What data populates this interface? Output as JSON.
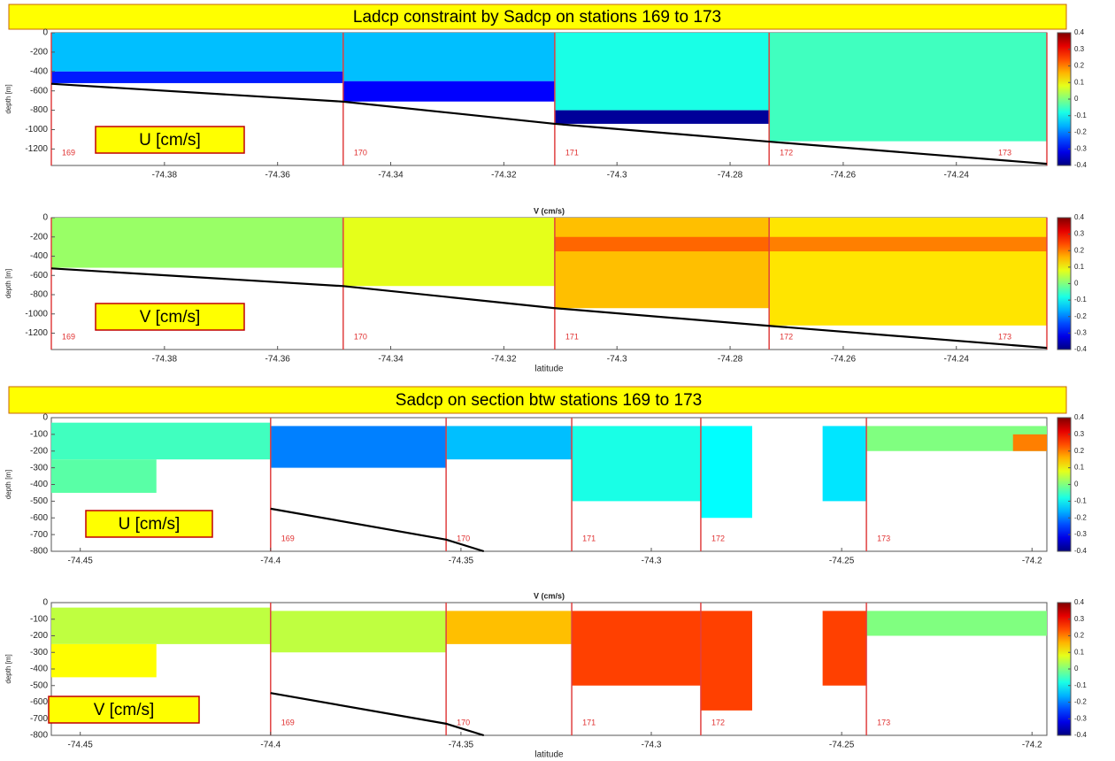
{
  "banners": [
    "Ladcp  constraint  by  Sadcp  on stations  169 to 173",
    "Sadcp  on section btw  stations  169 to 173"
  ],
  "chart_data": [
    {
      "type": "heatmap",
      "label": "U [cm/s]",
      "ylabel": "depth [m]",
      "xlim": [
        -74.4,
        -74.224
      ],
      "ylim": [
        -1370,
        0
      ],
      "xticks": [
        -74.38,
        -74.36,
        -74.34,
        -74.32,
        -74.3,
        -74.28,
        -74.26,
        -74.24
      ],
      "yticks": [
        0,
        -200,
        -400,
        -600,
        -800,
        -1000,
        -1200
      ],
      "clim": [
        -0.4,
        0.4
      ],
      "cticks": [
        0.4,
        0.3,
        0.2,
        0.1,
        0,
        -0.1,
        -0.2,
        -0.3,
        -0.4
      ],
      "stations": {
        "names": [
          "169",
          "170",
          "171",
          "172",
          "173"
        ],
        "x": [
          -74.4,
          -74.3484,
          -74.311,
          -74.2731,
          -74.224
        ]
      },
      "bottom": {
        "x": [
          -74.4,
          -74.3484,
          -74.311,
          -74.2731,
          -74.224
        ],
        "y": [
          -527,
          -711,
          -940,
          -1124,
          -1353
        ]
      },
      "cells": [
        {
          "x": [
            -74.4,
            -74.3484
          ],
          "y": [
            0,
            -400
          ],
          "value": -0.15
        },
        {
          "x": [
            -74.4,
            -74.3484
          ],
          "y": [
            -400,
            -520
          ],
          "value": -0.28
        },
        {
          "x": [
            -74.3484,
            -74.311
          ],
          "y": [
            0,
            -500
          ],
          "value": -0.15
        },
        {
          "x": [
            -74.3484,
            -74.311
          ],
          "y": [
            -500,
            -710
          ],
          "value": -0.3
        },
        {
          "x": [
            -74.311,
            -74.2731
          ],
          "y": [
            0,
            -800
          ],
          "value": -0.08
        },
        {
          "x": [
            -74.311,
            -74.2731
          ],
          "y": [
            -800,
            -940
          ],
          "value": -0.38
        },
        {
          "x": [
            -74.2731,
            -74.224
          ],
          "y": [
            0,
            -1120
          ],
          "value": -0.05
        }
      ]
    },
    {
      "type": "heatmap",
      "title": "V (cm/s)",
      "label": "V [cm/s]",
      "ylabel": "depth [m]",
      "xlabel": "latitude",
      "xlim": [
        -74.4,
        -74.224
      ],
      "ylim": [
        -1370,
        0
      ],
      "xticks": [
        -74.38,
        -74.36,
        -74.34,
        -74.32,
        -74.3,
        -74.28,
        -74.26,
        -74.24
      ],
      "yticks": [
        0,
        -200,
        -400,
        -600,
        -800,
        -1000,
        -1200
      ],
      "clim": [
        -0.4,
        0.4
      ],
      "cticks": [
        0.4,
        0.3,
        0.2,
        0.1,
        0,
        -0.1,
        -0.2,
        -0.3,
        -0.4
      ],
      "stations": {
        "names": [
          "169",
          "170",
          "171",
          "172",
          "173"
        ],
        "x": [
          -74.4,
          -74.3484,
          -74.311,
          -74.2731,
          -74.224
        ]
      },
      "bottom": {
        "x": [
          -74.4,
          -74.3484,
          -74.311,
          -74.2731,
          -74.224
        ],
        "y": [
          -527,
          -711,
          -940,
          -1124,
          -1353
        ]
      },
      "cells": [
        {
          "x": [
            -74.4,
            -74.3484
          ],
          "y": [
            0,
            -520
          ],
          "value": 0.02
        },
        {
          "x": [
            -74.3484,
            -74.311
          ],
          "y": [
            0,
            -710
          ],
          "value": 0.08
        },
        {
          "x": [
            -74.311,
            -74.2731
          ],
          "y": [
            0,
            -940
          ],
          "value": 0.15
        },
        {
          "x": [
            -74.311,
            -74.2731
          ],
          "y": [
            -200,
            -350
          ],
          "value": 0.22
        },
        {
          "x": [
            -74.2731,
            -74.224
          ],
          "y": [
            0,
            -1120
          ],
          "value": 0.12
        },
        {
          "x": [
            -74.2731,
            -74.224
          ],
          "y": [
            -200,
            -350
          ],
          "value": 0.2
        }
      ]
    },
    {
      "type": "heatmap",
      "label": "U [cm/s]",
      "ylabel": "depth [m]",
      "xlim": [
        -74.4576,
        -74.1961
      ],
      "ylim": [
        -800,
        0
      ],
      "xticks": [
        -74.45,
        -74.4,
        -74.35,
        -74.3,
        -74.25,
        -74.2
      ],
      "yticks": [
        0,
        -100,
        -200,
        -300,
        -400,
        -500,
        -600,
        -700,
        -800
      ],
      "clim": [
        -0.4,
        0.4
      ],
      "cticks": [
        0.4,
        0.3,
        0.2,
        0.1,
        0,
        -0.1,
        -0.2,
        -0.3,
        -0.4
      ],
      "stations": {
        "names": [
          "169",
          "170",
          "171",
          "172",
          "173"
        ],
        "x": [
          -74.4,
          -74.3539,
          -74.3209,
          -74.287,
          -74.2435
        ]
      },
      "bottom": {
        "x": [
          -74.4,
          -74.3539,
          -74.344
        ],
        "y": [
          -545,
          -730,
          -800
        ]
      },
      "cells": [
        {
          "x": [
            -74.4576,
            -74.4
          ],
          "y": [
            -30,
            -250
          ],
          "value": -0.05
        },
        {
          "x": [
            -74.4576,
            -74.43
          ],
          "y": [
            -250,
            -450
          ],
          "value": -0.03
        },
        {
          "x": [
            -74.4,
            -74.3539
          ],
          "y": [
            -50,
            -300
          ],
          "value": -0.2
        },
        {
          "x": [
            -74.3539,
            -74.3209
          ],
          "y": [
            -50,
            -250
          ],
          "value": -0.15
        },
        {
          "x": [
            -74.3209,
            -74.287
          ],
          "y": [
            -50,
            -500
          ],
          "value": -0.08
        },
        {
          "x": [
            -74.287,
            -74.2735
          ],
          "y": [
            -50,
            -600
          ],
          "value": -0.1
        },
        {
          "x": [
            -74.255,
            -74.2435
          ],
          "y": [
            -50,
            -500
          ],
          "value": -0.12
        },
        {
          "x": [
            -74.2435,
            -74.1961
          ],
          "y": [
            -50,
            -200
          ],
          "value": 0
        },
        {
          "x": [
            -74.205,
            -74.1961
          ],
          "y": [
            -100,
            -200
          ],
          "value": 0.2
        }
      ]
    },
    {
      "type": "heatmap",
      "title": "V (cm/s)",
      "label": "V [cm/s]",
      "ylabel": "depth [m]",
      "xlabel": "latitude",
      "xlim": [
        -74.4576,
        -74.1961
      ],
      "ylim": [
        -800,
        0
      ],
      "xticks": [
        -74.45,
        -74.4,
        -74.35,
        -74.3,
        -74.25,
        -74.2
      ],
      "yticks": [
        0,
        -100,
        -200,
        -300,
        -400,
        -500,
        -600,
        -700,
        -800
      ],
      "clim": [
        -0.4,
        0.4
      ],
      "cticks": [
        0.4,
        0.3,
        0.2,
        0.1,
        0,
        -0.1,
        -0.2,
        -0.3,
        -0.4
      ],
      "stations": {
        "names": [
          "169",
          "170",
          "171",
          "172",
          "173"
        ],
        "x": [
          -74.4,
          -74.3539,
          -74.3209,
          -74.287,
          -74.2435
        ]
      },
      "bottom": {
        "x": [
          -74.4,
          -74.3539,
          -74.344
        ],
        "y": [
          -545,
          -730,
          -800
        ]
      },
      "cells": [
        {
          "x": [
            -74.4576,
            -74.4
          ],
          "y": [
            -30,
            -250
          ],
          "value": 0.05
        },
        {
          "x": [
            -74.4576,
            -74.43
          ],
          "y": [
            -250,
            -450
          ],
          "value": 0.1
        },
        {
          "x": [
            -74.4,
            -74.3539
          ],
          "y": [
            -50,
            -300
          ],
          "value": 0.05
        },
        {
          "x": [
            -74.3539,
            -74.3209
          ],
          "y": [
            -50,
            -250
          ],
          "value": 0.15
        },
        {
          "x": [
            -74.3209,
            -74.287
          ],
          "y": [
            -50,
            -500
          ],
          "value": 0.25
        },
        {
          "x": [
            -74.287,
            -74.2735
          ],
          "y": [
            -50,
            -650
          ],
          "value": 0.25
        },
        {
          "x": [
            -74.255,
            -74.2435
          ],
          "y": [
            -50,
            -500
          ],
          "value": 0.25
        },
        {
          "x": [
            -74.2435,
            -74.1961
          ],
          "y": [
            -50,
            -200
          ],
          "value": 0
        }
      ]
    }
  ]
}
